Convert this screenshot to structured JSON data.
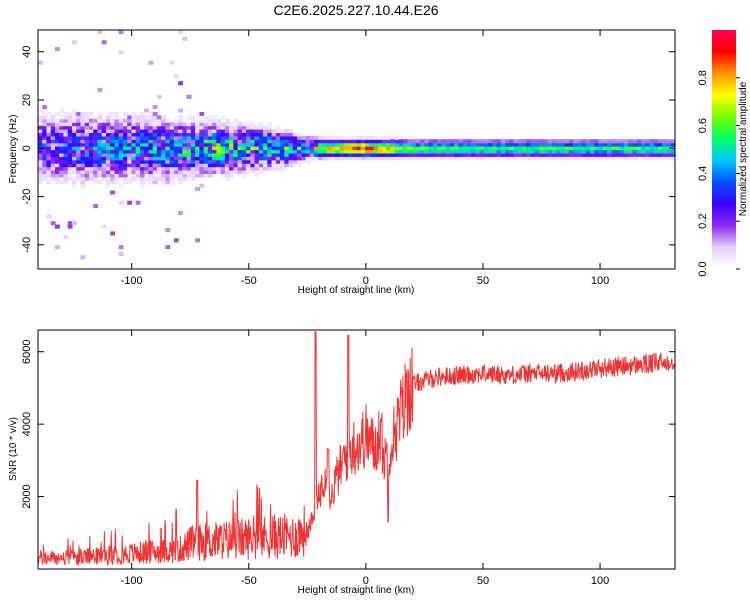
{
  "title": "C2E6.2025.227.10.44.E26",
  "chart_data": [
    {
      "type": "heatmap",
      "xlabel": "Height of straight line (km)",
      "ylabel": "Frequency (Hz)",
      "xlim": [
        -140,
        132
      ],
      "ylim": [
        -50,
        49
      ],
      "xticks": [
        -100,
        -50,
        0,
        50,
        100
      ],
      "yticks": [
        -40,
        -20,
        0,
        20,
        40
      ],
      "colorbar": {
        "label": "Normalized spectral amplitude",
        "range": [
          0.0,
          1.0
        ],
        "ticks": [
          0.0,
          0.2,
          0.4,
          0.6,
          0.8
        ],
        "colormap": [
          "#ffffff",
          "#e6d2fa",
          "#8c28f0",
          "#3c00ff",
          "#0050ff",
          "#00c8ff",
          "#00ff64",
          "#78ff00",
          "#ffff00",
          "#ff9600",
          "#ff0000",
          "#ff0050"
        ]
      },
      "band": {
        "center_freq_hz": 0,
        "x": [
          -140,
          -120,
          -100,
          -80,
          -60,
          -40,
          -25,
          -15,
          0,
          20,
          50,
          100,
          132
        ],
        "half_width_hz": [
          12,
          12,
          11,
          10,
          9,
          7,
          4,
          3,
          3,
          3,
          3,
          3,
          3
        ],
        "peak_amplitude": [
          0.3,
          0.35,
          0.4,
          0.45,
          0.5,
          0.5,
          0.55,
          0.75,
          0.95,
          0.6,
          0.55,
          0.55,
          0.55
        ]
      }
    },
    {
      "type": "line",
      "xlabel": "Height of straight line (km)",
      "ylabel": "SNR (10 * v/v)",
      "xlim": [
        -140,
        132
      ],
      "ylim": [
        0,
        6600
      ],
      "xticks": [
        -100,
        -50,
        0,
        50,
        100
      ],
      "yticks": [
        2000,
        4000,
        6000
      ],
      "color": "#ee3333",
      "series": [
        {
          "x": [
            -140,
            -130,
            -120,
            -110,
            -100,
            -90,
            -80,
            -75,
            -70,
            -60,
            -50,
            -40,
            -30,
            -25,
            -22,
            -20,
            -18,
            -16,
            -15,
            -14,
            -12,
            -10,
            -8,
            -5,
            -2,
            0,
            2,
            4,
            6,
            8,
            10,
            12,
            15,
            18,
            20,
            25,
            30,
            40,
            50,
            60,
            70,
            80,
            90,
            100,
            110,
            120,
            132
          ],
          "values": [
            300,
            300,
            330,
            380,
            430,
            480,
            520,
            700,
            750,
            800,
            850,
            900,
            900,
            1100,
            1400,
            2000,
            2600,
            3000,
            1800,
            2200,
            2600,
            2900,
            3200,
            3400,
            3500,
            3700,
            3500,
            3300,
            3900,
            3000,
            3400,
            3700,
            4300,
            4900,
            5100,
            5200,
            5300,
            5350,
            5400,
            5350,
            5400,
            5400,
            5450,
            5550,
            5600,
            5650,
            5750
          ]
        }
      ],
      "spikes": [
        {
          "x": -21.5,
          "value": 6550
        },
        {
          "x": -16,
          "value": 3300
        },
        {
          "x": -7.5,
          "value": 6450
        },
        {
          "x": 9.5,
          "value": 1300
        },
        {
          "x": -72,
          "value": 2450
        },
        {
          "x": -81,
          "value": 1650
        }
      ]
    }
  ]
}
